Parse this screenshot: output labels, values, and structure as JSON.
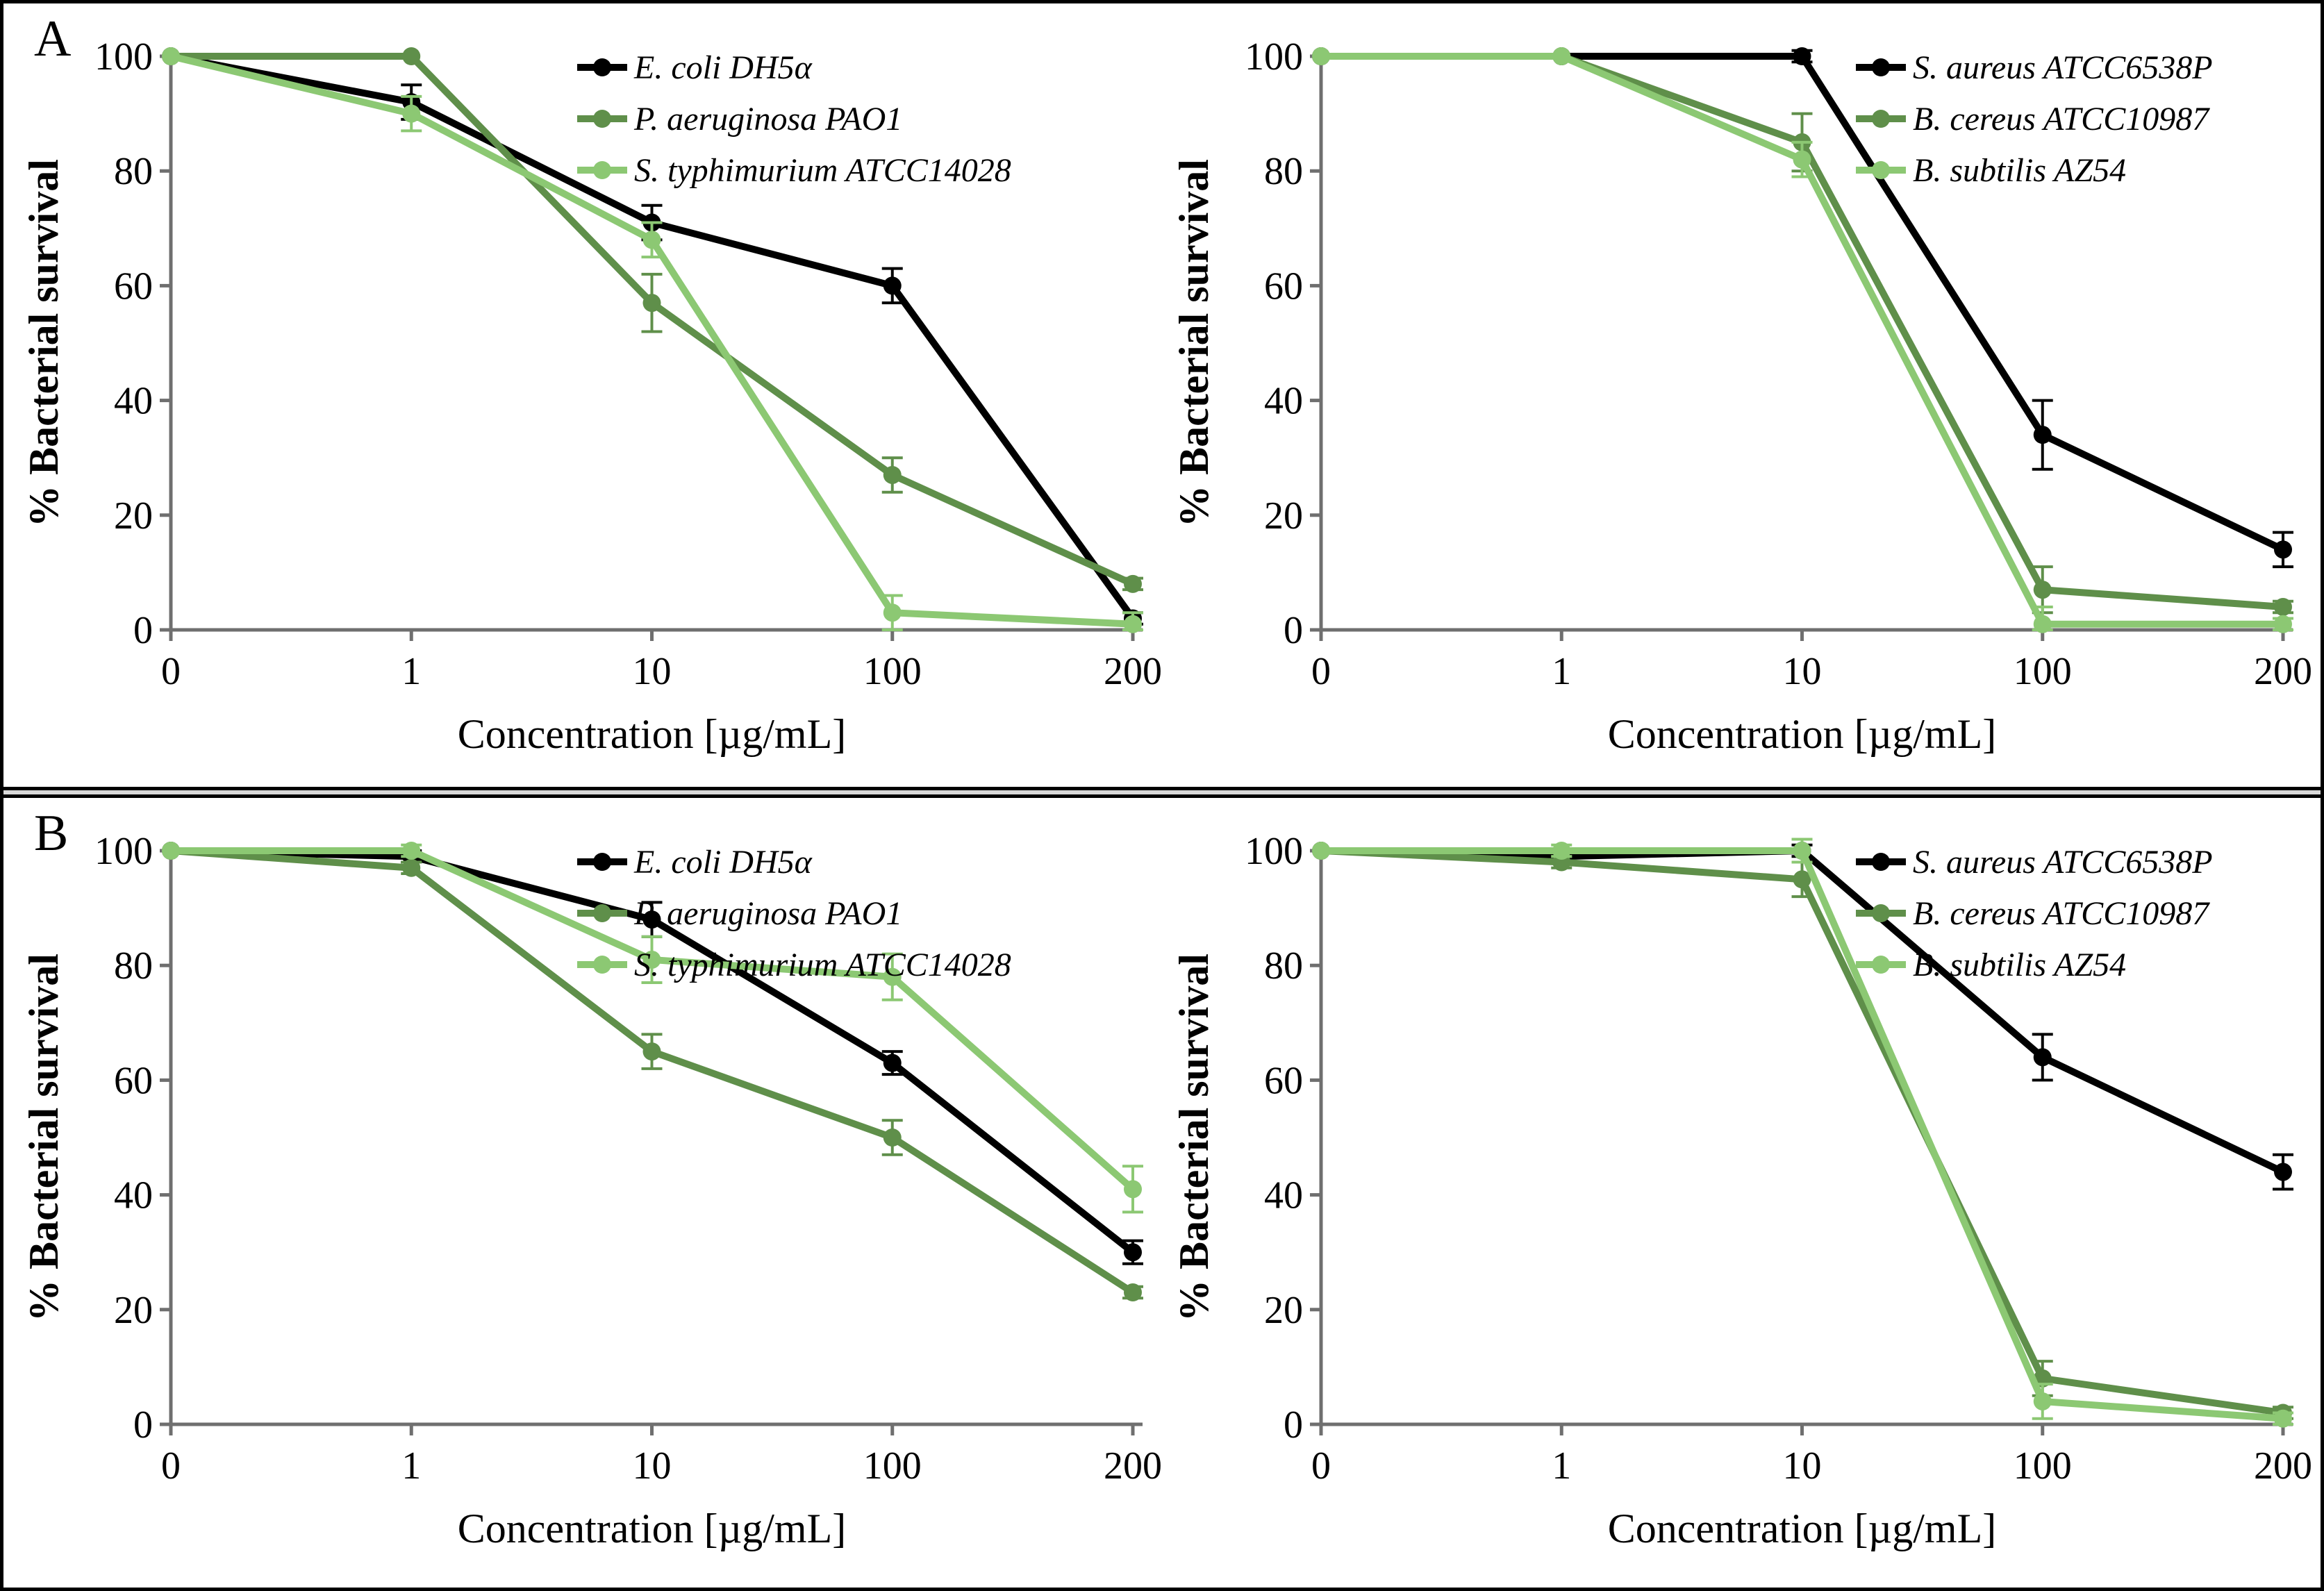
{
  "panels": [
    {
      "label": "A"
    },
    {
      "label": "B"
    }
  ],
  "colors": {
    "black_series": "#000000",
    "dark_green_series": "#5f8f4a",
    "light_green_series": "#8cc873",
    "axis": "#6f6f6f",
    "divider_fill": "#d9d9d9",
    "border": "#000000"
  },
  "chart_data": [
    {
      "type": "line",
      "panel": "A",
      "position": "left",
      "title": "",
      "xlabel": "Concentration [µg/mL]",
      "ylabel": "% Bacterial survival",
      "categories": [
        "0",
        "1",
        "10",
        "100",
        "200"
      ],
      "x_scale": "categorical",
      "yticks": [
        0,
        20,
        40,
        60,
        80,
        100
      ],
      "ylim": [
        0,
        100
      ],
      "grid": false,
      "legend_position": "inside-top-right",
      "error_bars": true,
      "series": [
        {
          "name": "E. coli DH5α",
          "color": "#000000",
          "values": [
            100,
            92,
            71,
            60,
            2
          ],
          "errors": [
            0,
            3,
            3,
            3,
            1
          ]
        },
        {
          "name": "P. aeruginosa PAO1",
          "color": "#5f8f4a",
          "values": [
            100,
            100,
            57,
            27,
            8
          ],
          "errors": [
            0,
            0,
            5,
            3,
            1
          ]
        },
        {
          "name": "S. typhimurium ATCC14028",
          "color": "#8cc873",
          "values": [
            100,
            90,
            68,
            3,
            1
          ],
          "errors": [
            0,
            3,
            3,
            3,
            2
          ]
        }
      ]
    },
    {
      "type": "line",
      "panel": "A",
      "position": "right",
      "title": "",
      "xlabel": "Concentration [µg/mL]",
      "ylabel": "% Bacterial survival",
      "categories": [
        "0",
        "1",
        "10",
        "100",
        "200"
      ],
      "x_scale": "categorical",
      "yticks": [
        0,
        20,
        40,
        60,
        80,
        100
      ],
      "ylim": [
        0,
        100
      ],
      "grid": false,
      "legend_position": "inside-top-right",
      "error_bars": true,
      "series": [
        {
          "name": "S. aureus ATCC6538P",
          "color": "#000000",
          "values": [
            100,
            100,
            100,
            34,
            14
          ],
          "errors": [
            0,
            0,
            1,
            6,
            3
          ]
        },
        {
          "name": "B. cereus ATCC10987",
          "color": "#5f8f4a",
          "values": [
            100,
            100,
            85,
            7,
            4
          ],
          "errors": [
            0,
            0,
            5,
            4,
            1
          ]
        },
        {
          "name": "B. subtilis AZ54",
          "color": "#8cc873",
          "values": [
            100,
            100,
            82,
            1,
            1
          ],
          "errors": [
            0,
            0,
            3,
            3,
            1
          ]
        }
      ]
    },
    {
      "type": "line",
      "panel": "B",
      "position": "left",
      "title": "",
      "xlabel": "Concentration [µg/mL]",
      "ylabel": "% Bacterial survival",
      "categories": [
        "0",
        "1",
        "10",
        "100",
        "200"
      ],
      "x_scale": "categorical",
      "yticks": [
        0,
        20,
        40,
        60,
        80,
        100
      ],
      "ylim": [
        0,
        100
      ],
      "grid": false,
      "legend_position": "inside-top-right",
      "error_bars": true,
      "series": [
        {
          "name": "E. coli DH5α",
          "color": "#000000",
          "values": [
            100,
            99,
            88,
            63,
            30
          ],
          "errors": [
            0,
            1,
            3,
            2,
            2
          ]
        },
        {
          "name": "P. aeruginosa PAO1",
          "color": "#5f8f4a",
          "values": [
            100,
            97,
            65,
            50,
            23
          ],
          "errors": [
            0,
            1,
            3,
            3,
            1
          ]
        },
        {
          "name": "S. typhimurium ATCC14028",
          "color": "#8cc873",
          "values": [
            100,
            100,
            81,
            78,
            41
          ],
          "errors": [
            0,
            1,
            4,
            4,
            4
          ]
        }
      ]
    },
    {
      "type": "line",
      "panel": "B",
      "position": "right",
      "title": "",
      "xlabel": "Concentration [µg/mL]",
      "ylabel": "% Bacterial survival",
      "categories": [
        "0",
        "1",
        "10",
        "100",
        "200"
      ],
      "x_scale": "categorical",
      "yticks": [
        0,
        20,
        40,
        60,
        80,
        100
      ],
      "ylim": [
        0,
        100
      ],
      "grid": false,
      "legend_position": "inside-top-right",
      "error_bars": true,
      "series": [
        {
          "name": "S. aureus ATCC6538P",
          "color": "#000000",
          "values": [
            100,
            99,
            100,
            64,
            44
          ],
          "errors": [
            0,
            1,
            1,
            4,
            3
          ]
        },
        {
          "name": "B. cereus ATCC10987",
          "color": "#5f8f4a",
          "values": [
            100,
            98,
            95,
            8,
            2
          ],
          "errors": [
            0,
            1,
            3,
            3,
            1
          ]
        },
        {
          "name": "B. subtilis AZ54",
          "color": "#8cc873",
          "values": [
            100,
            100,
            100,
            4,
            1
          ],
          "errors": [
            0,
            1,
            2,
            3,
            1
          ]
        }
      ]
    }
  ]
}
